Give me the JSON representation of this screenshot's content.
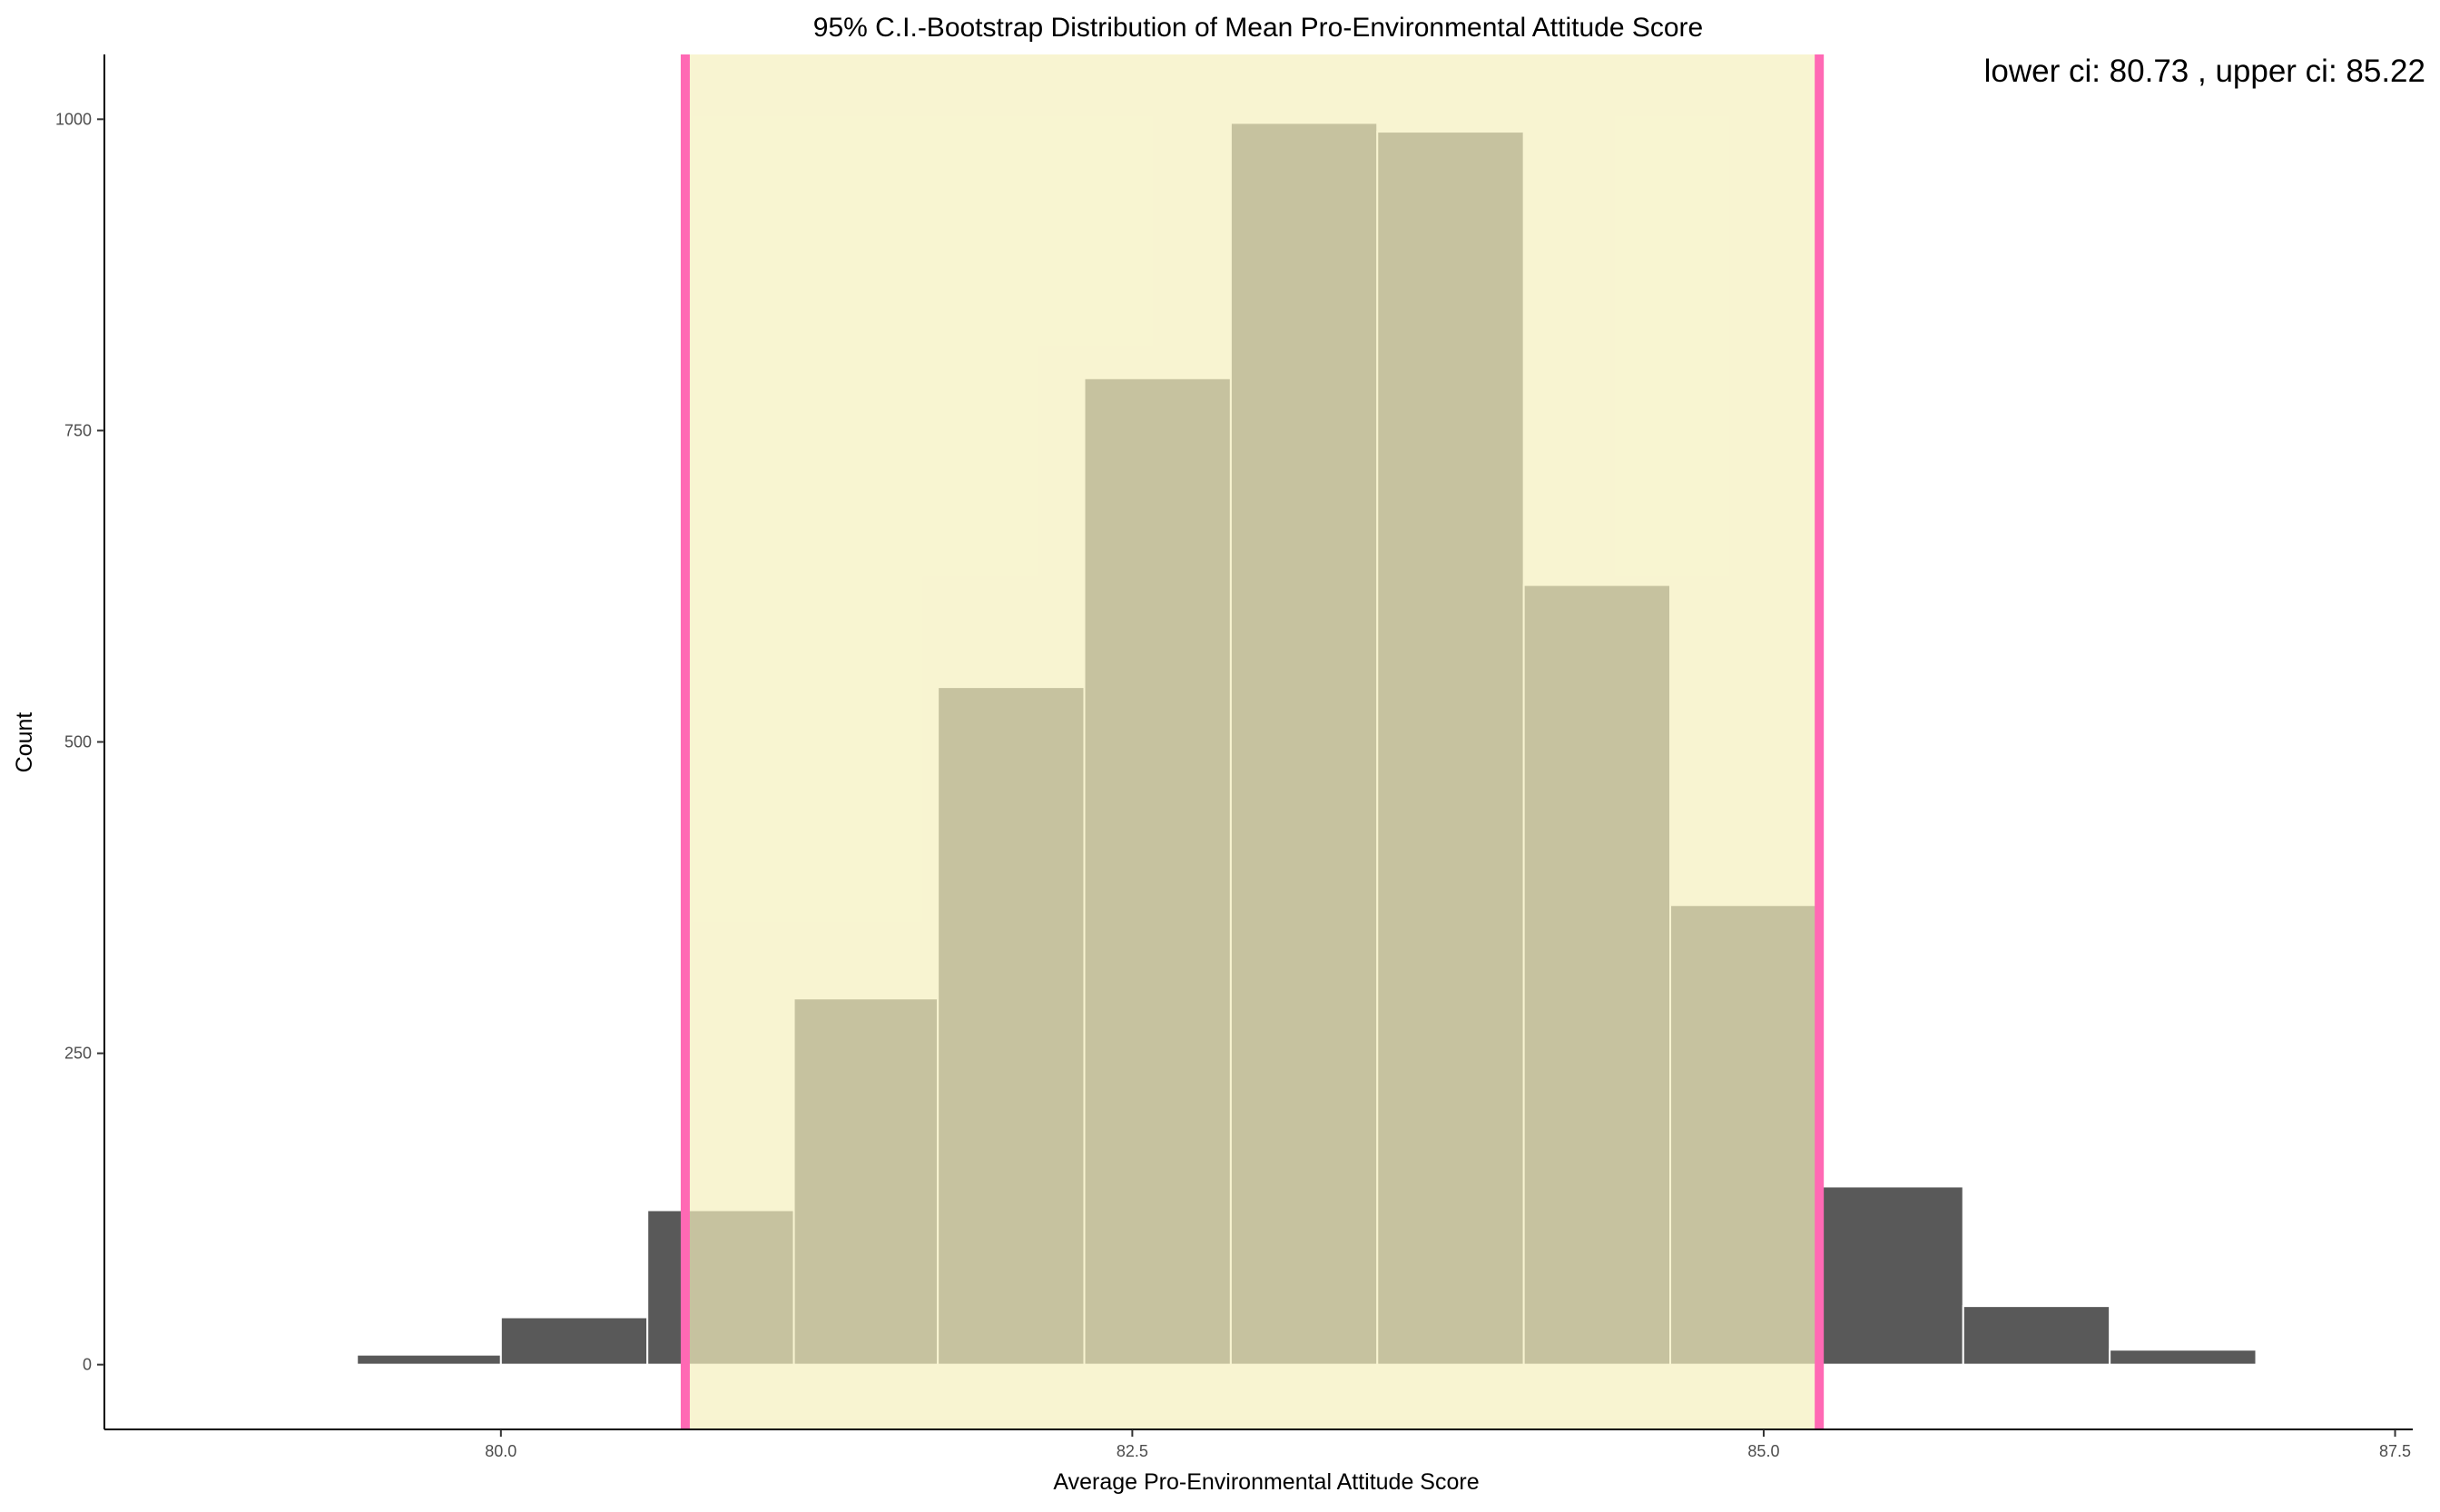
{
  "chart_data": {
    "type": "bar",
    "title": "95% C.I.-Bootstrap Distribution of Mean Pro-Environmental Attitude Score",
    "xlabel": "Average Pro-Environmental Attitude Score",
    "ylabel": "Count",
    "xlim": [
      78.43,
      87.57
    ],
    "ylim": [
      -52,
      1052
    ],
    "x_ticks": [
      80.0,
      82.5,
      85.0,
      87.5
    ],
    "x_tick_labels": [
      "80.0",
      "82.5",
      "85.0",
      "87.5"
    ],
    "y_ticks": [
      0,
      250,
      500,
      750,
      1000
    ],
    "y_tick_labels": [
      "0",
      "250",
      "500",
      "750",
      "1000"
    ],
    "bins": [
      {
        "x0": 78.85,
        "x1": 79.43,
        "count": 1
      },
      {
        "x0": 79.43,
        "x1": 80.0,
        "count": 8
      },
      {
        "x0": 80.0,
        "x1": 80.58,
        "count": 38
      },
      {
        "x0": 80.58,
        "x1": 81.16,
        "count": 124
      },
      {
        "x0": 81.16,
        "x1": 81.73,
        "count": 294
      },
      {
        "x0": 81.73,
        "x1": 82.31,
        "count": 544
      },
      {
        "x0": 82.31,
        "x1": 82.89,
        "count": 792
      },
      {
        "x0": 82.89,
        "x1": 83.47,
        "count": 997
      },
      {
        "x0": 83.47,
        "x1": 84.05,
        "count": 990
      },
      {
        "x0": 84.05,
        "x1": 84.63,
        "count": 626
      },
      {
        "x0": 84.63,
        "x1": 85.21,
        "count": 369
      },
      {
        "x0": 85.21,
        "x1": 85.79,
        "count": 143
      },
      {
        "x0": 85.79,
        "x1": 86.37,
        "count": 47
      },
      {
        "x0": 86.37,
        "x1": 86.95,
        "count": 12
      },
      {
        "x0": 86.95,
        "x1": 87.52,
        "count": 1
      }
    ],
    "ci": {
      "lower": 80.73,
      "upper": 85.22
    },
    "annotation": "lower ci: 80.73 , upper ci: 85.22",
    "grid": false,
    "legend": "none",
    "colors": {
      "bar_fill": "#595959",
      "bar_edge": "#ffffff",
      "ci_band": "#f5f0bd",
      "ci_line": "#ff69b4",
      "axis": "#000000"
    }
  }
}
